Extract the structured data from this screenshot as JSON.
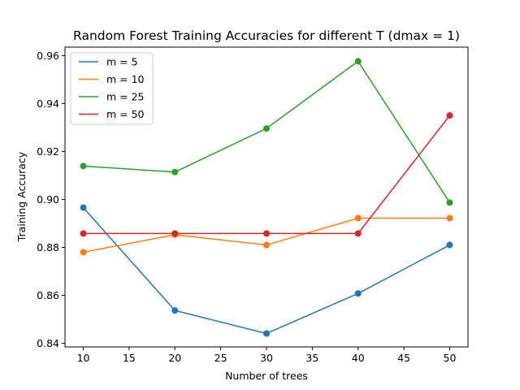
{
  "chart_data": {
    "type": "line",
    "title": "Random Forest Training Accuracies for different T (dmax = 1)",
    "xlabel": "Number of trees",
    "ylabel": "Training Accuracy",
    "x": [
      10,
      20,
      30,
      40,
      50
    ],
    "xlim": [
      8,
      52
    ],
    "ylim": [
      0.8385,
      0.9635
    ],
    "xticks": [
      10,
      15,
      20,
      25,
      30,
      35,
      40,
      45,
      50
    ],
    "yticks": [
      0.84,
      0.86,
      0.88,
      0.9,
      0.92,
      0.94,
      0.96
    ],
    "ytick_labels": [
      "0.84",
      "0.86",
      "0.88",
      "0.90",
      "0.92",
      "0.94",
      "0.96"
    ],
    "legend_position": "top-left",
    "grid": false,
    "series": [
      {
        "name": "m = 5",
        "color": "#1f77b4",
        "values": [
          0.8966,
          0.8537,
          0.8441,
          0.8608,
          0.881
        ]
      },
      {
        "name": "m = 10",
        "color": "#ff7f0e",
        "values": [
          0.878,
          0.8853,
          0.881,
          0.8922,
          0.8922
        ]
      },
      {
        "name": "m = 25",
        "color": "#2ca02c",
        "values": [
          0.9139,
          0.9114,
          0.9296,
          0.9576,
          0.8987
        ]
      },
      {
        "name": "m = 50",
        "color": "#d62728",
        "values": [
          0.8858,
          0.8858,
          0.8858,
          0.8858,
          0.935
        ]
      }
    ]
  }
}
